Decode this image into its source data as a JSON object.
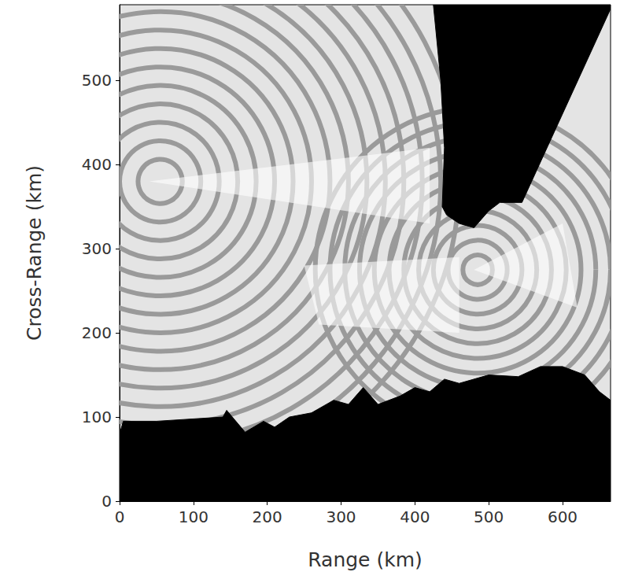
{
  "chart_data": {
    "type": "rings",
    "x_label": "Range (km)",
    "y_label": "Cross-Range (km)",
    "xlim": [
      0,
      665
    ],
    "ylim": [
      0,
      590
    ],
    "xticks": [
      0,
      100,
      200,
      300,
      400,
      500,
      600
    ],
    "yticks": [
      0,
      100,
      200,
      300,
      400,
      500
    ],
    "color": "#9a9a9a",
    "sources": [
      {
        "center": [
          55,
          380
        ],
        "radii": [
          30,
          55,
          80,
          105,
          130,
          155,
          180,
          205,
          230,
          255,
          280,
          305,
          330,
          355,
          380,
          405
        ]
      },
      {
        "center": [
          485,
          275
        ],
        "radii": [
          20,
          40,
          60,
          80,
          100,
          120,
          140,
          160,
          180,
          200,
          220
        ]
      }
    ],
    "bright_regions": [
      [
        [
          40,
          380
        ],
        [
          420,
          420
        ],
        [
          420,
          330
        ]
      ],
      [
        [
          250,
          280
        ],
        [
          460,
          290
        ],
        [
          460,
          200
        ],
        [
          270,
          210
        ]
      ],
      [
        [
          480,
          275
        ],
        [
          600,
          330
        ],
        [
          620,
          230
        ]
      ]
    ],
    "masked_regions": [
      [
        [
          0,
          0
        ],
        [
          0,
          80
        ],
        [
          5,
          95
        ],
        [
          50,
          95
        ],
        [
          140,
          100
        ],
        [
          145,
          108
        ],
        [
          170,
          82
        ],
        [
          195,
          95
        ],
        [
          210,
          88
        ],
        [
          230,
          100
        ],
        [
          260,
          105
        ],
        [
          290,
          120
        ],
        [
          310,
          115
        ],
        [
          330,
          135
        ],
        [
          350,
          115
        ],
        [
          380,
          125
        ],
        [
          400,
          135
        ],
        [
          420,
          130
        ],
        [
          440,
          145
        ],
        [
          460,
          140
        ],
        [
          500,
          150
        ],
        [
          540,
          148
        ],
        [
          570,
          160
        ],
        [
          600,
          160
        ],
        [
          630,
          150
        ],
        [
          650,
          130
        ],
        [
          665,
          120
        ],
        [
          665,
          0
        ]
      ],
      [
        [
          425,
          590
        ],
        [
          435,
          500
        ],
        [
          440,
          420
        ],
        [
          437,
          350
        ],
        [
          443,
          340
        ],
        [
          460,
          330
        ],
        [
          480,
          325
        ],
        [
          500,
          345
        ],
        [
          515,
          355
        ],
        [
          545,
          355
        ],
        [
          665,
          585
        ],
        [
          665,
          590
        ]
      ]
    ]
  }
}
